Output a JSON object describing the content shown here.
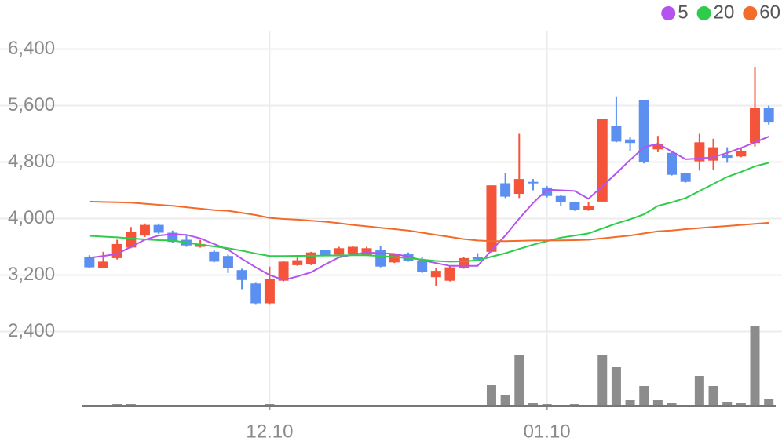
{
  "chart_data": {
    "type": "candlestick",
    "categories": [
      null,
      null,
      null,
      null,
      null,
      null,
      null,
      null,
      null,
      null,
      null,
      null,
      null,
      "12.10",
      null,
      null,
      null,
      null,
      null,
      null,
      null,
      null,
      null,
      null,
      null,
      null,
      null,
      null,
      null,
      null,
      null,
      null,
      null,
      "01.10",
      null,
      null,
      null,
      null,
      null,
      null,
      null,
      null,
      null,
      null,
      null,
      null,
      null,
      null,
      null,
      null
    ],
    "open": [
      3450,
      3300,
      3440,
      3590,
      3760,
      3910,
      3800,
      3700,
      3600,
      3530,
      3470,
      3270,
      3080,
      2800,
      3120,
      3340,
      3350,
      3550,
      3490,
      3500,
      3480,
      3550,
      3380,
      3500,
      3400,
      3170,
      3120,
      3300,
      3450,
      3530,
      4500,
      4350,
      4520,
      4440,
      4320,
      4230,
      4120,
      4240,
      5310,
      5120,
      5680,
      4980,
      4930,
      4640,
      4810,
      4820,
      4900,
      4880,
      5070,
      5570
    ],
    "high": [
      3480,
      3530,
      3700,
      3880,
      3930,
      3930,
      3830,
      3760,
      3700,
      3560,
      3490,
      3290,
      3100,
      3320,
      3400,
      3470,
      3530,
      3560,
      3600,
      3610,
      3600,
      3610,
      3510,
      3520,
      3450,
      3300,
      3330,
      3450,
      3510,
      4470,
      4640,
      5200,
      4560,
      4460,
      4340,
      4240,
      4240,
      5410,
      5730,
      5160,
      5680,
      5170,
      4950,
      4650,
      5200,
      5130,
      5010,
      5000,
      6150,
      5600
    ],
    "low": [
      3300,
      3300,
      3420,
      3580,
      3740,
      3780,
      3650,
      3600,
      3590,
      3380,
      3230,
      3000,
      2790,
      2790,
      3110,
      3330,
      3340,
      3470,
      3480,
      3490,
      3470,
      3310,
      3370,
      3390,
      3230,
      3040,
      3110,
      3290,
      3400,
      3520,
      4290,
      4290,
      4400,
      4300,
      4180,
      4110,
      4110,
      4240,
      5080,
      4960,
      4780,
      4940,
      4610,
      4510,
      4680,
      4690,
      4790,
      4870,
      5020,
      5330
    ],
    "close": [
      3310,
      3390,
      3640,
      3810,
      3910,
      3800,
      3670,
      3620,
      3640,
      3390,
      3300,
      3130,
      2800,
      3140,
      3390,
      3410,
      3520,
      3480,
      3580,
      3600,
      3580,
      3320,
      3500,
      3400,
      3240,
      3260,
      3310,
      3440,
      3420,
      4470,
      4310,
      4560,
      4500,
      4320,
      4230,
      4120,
      4180,
      5410,
      5090,
      5070,
      4800,
      5060,
      4620,
      4520,
      5080,
      5010,
      4860,
      4960,
      5570,
      5360
    ],
    "up_color": "#f4553a",
    "down_color": "#5b8ff0",
    "series": [
      {
        "name": "5",
        "color": "#b553ef",
        "values": [
          3445,
          3470,
          3500,
          3600,
          3700,
          3760,
          3780,
          3770,
          3720,
          3640,
          3560,
          3430,
          3310,
          3200,
          3130,
          3180,
          3240,
          3350,
          3450,
          3490,
          3520,
          3510,
          3500,
          3460,
          3410,
          3370,
          3330,
          3330,
          3330,
          3550,
          3760,
          4000,
          4220,
          4410,
          4400,
          4390,
          4280,
          4460,
          4640,
          4830,
          5010,
          5060,
          4950,
          4840,
          4850,
          4870,
          4930,
          5000,
          5080,
          5160
        ]
      },
      {
        "name": "20",
        "color": "#2ecc4a",
        "values": [
          3756,
          3745,
          3735,
          3720,
          3705,
          3695,
          3690,
          3660,
          3630,
          3605,
          3580,
          3545,
          3505,
          3470,
          3470,
          3472,
          3474,
          3476,
          3478,
          3480,
          3480,
          3470,
          3455,
          3440,
          3420,
          3400,
          3390,
          3395,
          3410,
          3460,
          3510,
          3570,
          3630,
          3680,
          3730,
          3760,
          3790,
          3860,
          3930,
          3990,
          4060,
          4180,
          4230,
          4290,
          4390,
          4490,
          4590,
          4660,
          4740,
          4790
        ]
      },
      {
        "name": "60",
        "color": "#f26b2a",
        "values": [
          4240,
          4235,
          4230,
          4225,
          4210,
          4195,
          4180,
          4160,
          4140,
          4120,
          4110,
          4080,
          4050,
          4010,
          3995,
          3985,
          3970,
          3955,
          3935,
          3910,
          3890,
          3870,
          3850,
          3830,
          3800,
          3770,
          3740,
          3710,
          3690,
          3680,
          3680,
          3685,
          3690,
          3690,
          3692,
          3695,
          3700,
          3720,
          3740,
          3760,
          3790,
          3820,
          3830,
          3850,
          3865,
          3880,
          3895,
          3910,
          3925,
          3940
        ]
      }
    ],
    "volume": [
      1,
      1,
      2,
      2,
      1,
      1,
      1,
      1,
      1,
      1,
      1,
      1,
      1,
      2,
      1,
      1,
      1,
      1,
      1,
      1,
      1,
      1,
      1,
      1,
      1,
      1,
      1,
      1,
      1,
      26,
      14,
      65,
      4,
      2,
      1,
      2,
      1,
      65,
      49,
      7,
      25,
      7,
      3,
      1,
      38,
      25,
      5,
      4,
      102,
      8
    ],
    "volume_color": "#8c8c8c",
    "ylim": [
      1350,
      6650
    ],
    "yticks": [
      {
        "value": 2400,
        "label": "2,400"
      },
      {
        "value": 3200,
        "label": "3,200"
      },
      {
        "value": 4000,
        "label": "4,000"
      },
      {
        "value": 4800,
        "label": "4,800"
      },
      {
        "value": 5600,
        "label": "5,600"
      },
      {
        "value": 6400,
        "label": "6,400"
      }
    ],
    "grid": true,
    "legend": "top-right"
  }
}
